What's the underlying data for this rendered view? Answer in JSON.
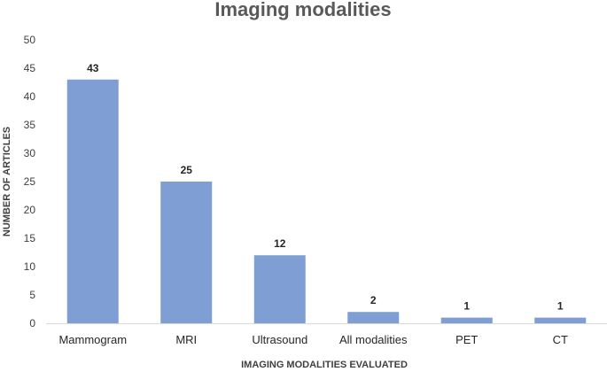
{
  "chart_data": {
    "type": "bar",
    "title": "Imaging modalities",
    "xlabel": "IMAGING MODALITIES EVALUATED",
    "ylabel": "NUMBER OF ARTICLES",
    "categories": [
      "Mammogram",
      "MRI",
      "Ultrasound",
      "All modalities",
      "PET",
      "CT"
    ],
    "values": [
      43,
      25,
      12,
      2,
      1,
      1
    ],
    "data_labels": [
      "43",
      "25",
      "12",
      "2",
      "1",
      "1"
    ],
    "ylim": [
      0,
      50
    ],
    "yticks": [
      "0",
      "5",
      "10",
      "15",
      "20",
      "25",
      "30",
      "35",
      "40",
      "45",
      "50"
    ],
    "grid": false,
    "legend": "none",
    "bar_color": "#7f9fd4",
    "axis_color": "#d9d9d9"
  }
}
